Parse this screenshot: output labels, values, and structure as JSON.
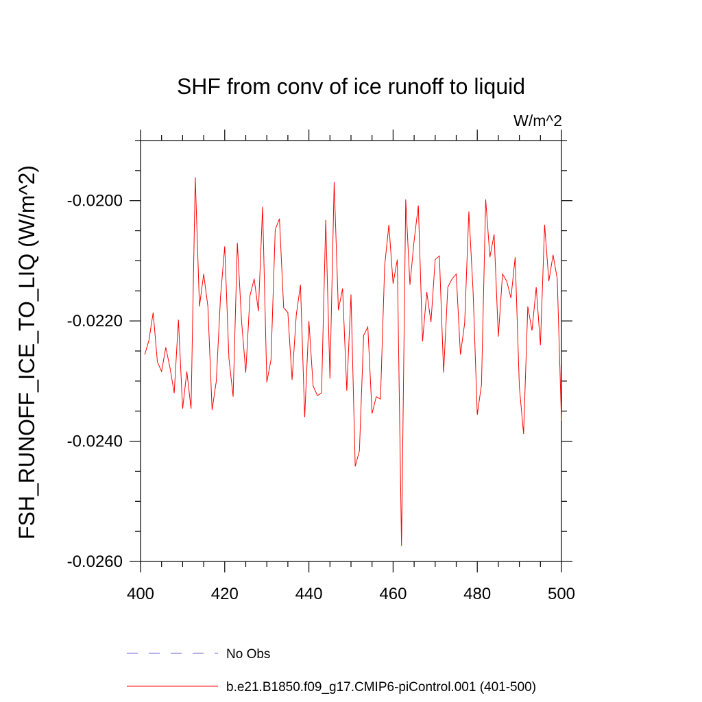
{
  "chart_data": {
    "type": "line",
    "title": "SHF from conv of ice runoff to liquid",
    "units": "W/m^2",
    "xlabel": "",
    "ylabel": "FSH_RUNOFF_ICE_TO_LIQ  (W/m^2)",
    "xlim": [
      400,
      500
    ],
    "ylim": [
      -0.026,
      -0.019
    ],
    "xticks": [
      400,
      420,
      440,
      460,
      480,
      500
    ],
    "xtick_labels": [
      "400",
      "420",
      "440",
      "460",
      "480",
      "500"
    ],
    "yticks": [
      -0.026,
      -0.024,
      -0.022,
      -0.02
    ],
    "ytick_labels": [
      "-0.0260",
      "-0.0240",
      "-0.0220",
      "-0.0200"
    ],
    "x": [
      401,
      402,
      403,
      404,
      405,
      406,
      407,
      408,
      409,
      410,
      411,
      412,
      413,
      414,
      415,
      416,
      417,
      418,
      419,
      420,
      421,
      422,
      423,
      424,
      425,
      426,
      427,
      428,
      429,
      430,
      431,
      432,
      433,
      434,
      435,
      436,
      437,
      438,
      439,
      440,
      441,
      442,
      443,
      444,
      445,
      446,
      447,
      448,
      449,
      450,
      451,
      452,
      453,
      454,
      455,
      456,
      457,
      458,
      459,
      460,
      461,
      462,
      463,
      464,
      465,
      466,
      467,
      468,
      469,
      470,
      471,
      472,
      473,
      474,
      475,
      476,
      477,
      478,
      479,
      480,
      481,
      482,
      483,
      484,
      485,
      486,
      487,
      488,
      489,
      490,
      491,
      492,
      493,
      494,
      495,
      496,
      497,
      498,
      499,
      500
    ],
    "series": [
      {
        "name": "b.e21.B1850.f09_g17.CMIP6-piControl.001 (401-500)",
        "color": "#ff0000",
        "dash": "solid",
        "values": [
          -0.02256,
          -0.02232,
          -0.02186,
          -0.02268,
          -0.02284,
          -0.02244,
          -0.02278,
          -0.0232,
          -0.02198,
          -0.02346,
          -0.02284,
          -0.02346,
          -0.01961,
          -0.02176,
          -0.02122,
          -0.02176,
          -0.02348,
          -0.023,
          -0.0216,
          -0.02076,
          -0.02262,
          -0.02326,
          -0.0207,
          -0.022,
          -0.02286,
          -0.02158,
          -0.0213,
          -0.02184,
          -0.0201,
          -0.02302,
          -0.02264,
          -0.02048,
          -0.0203,
          -0.02178,
          -0.02186,
          -0.02298,
          -0.0219,
          -0.0214,
          -0.0236,
          -0.022,
          -0.02308,
          -0.02324,
          -0.0232,
          -0.02032,
          -0.02296,
          -0.01969,
          -0.02182,
          -0.02146,
          -0.02316,
          -0.02156,
          -0.02442,
          -0.02416,
          -0.02224,
          -0.0221,
          -0.02354,
          -0.02326,
          -0.0233,
          -0.02108,
          -0.0204,
          -0.02138,
          -0.02098,
          -0.02574,
          -0.01998,
          -0.0214,
          -0.02066,
          -0.02008,
          -0.02234,
          -0.02152,
          -0.02202,
          -0.02098,
          -0.02092,
          -0.02286,
          -0.02144,
          -0.0213,
          -0.02122,
          -0.02256,
          -0.02204,
          -0.02018,
          -0.0215,
          -0.02356,
          -0.02306,
          -0.01998,
          -0.02094,
          -0.02056,
          -0.02226,
          -0.02122,
          -0.02134,
          -0.02162,
          -0.02094,
          -0.0231,
          -0.02388,
          -0.02176,
          -0.02216,
          -0.02144,
          -0.0224,
          -0.0204,
          -0.02134,
          -0.0209,
          -0.0213,
          -0.02366
        ]
      }
    ],
    "legend": [
      {
        "label": "No Obs",
        "color": "#6666cc",
        "dash": "dashed"
      },
      {
        "label": "b.e21.B1850.f09_g17.CMIP6-piControl.001 (401-500)",
        "color": "#ff0000",
        "dash": "solid"
      }
    ],
    "legend_position": "bottom",
    "grid": false
  }
}
